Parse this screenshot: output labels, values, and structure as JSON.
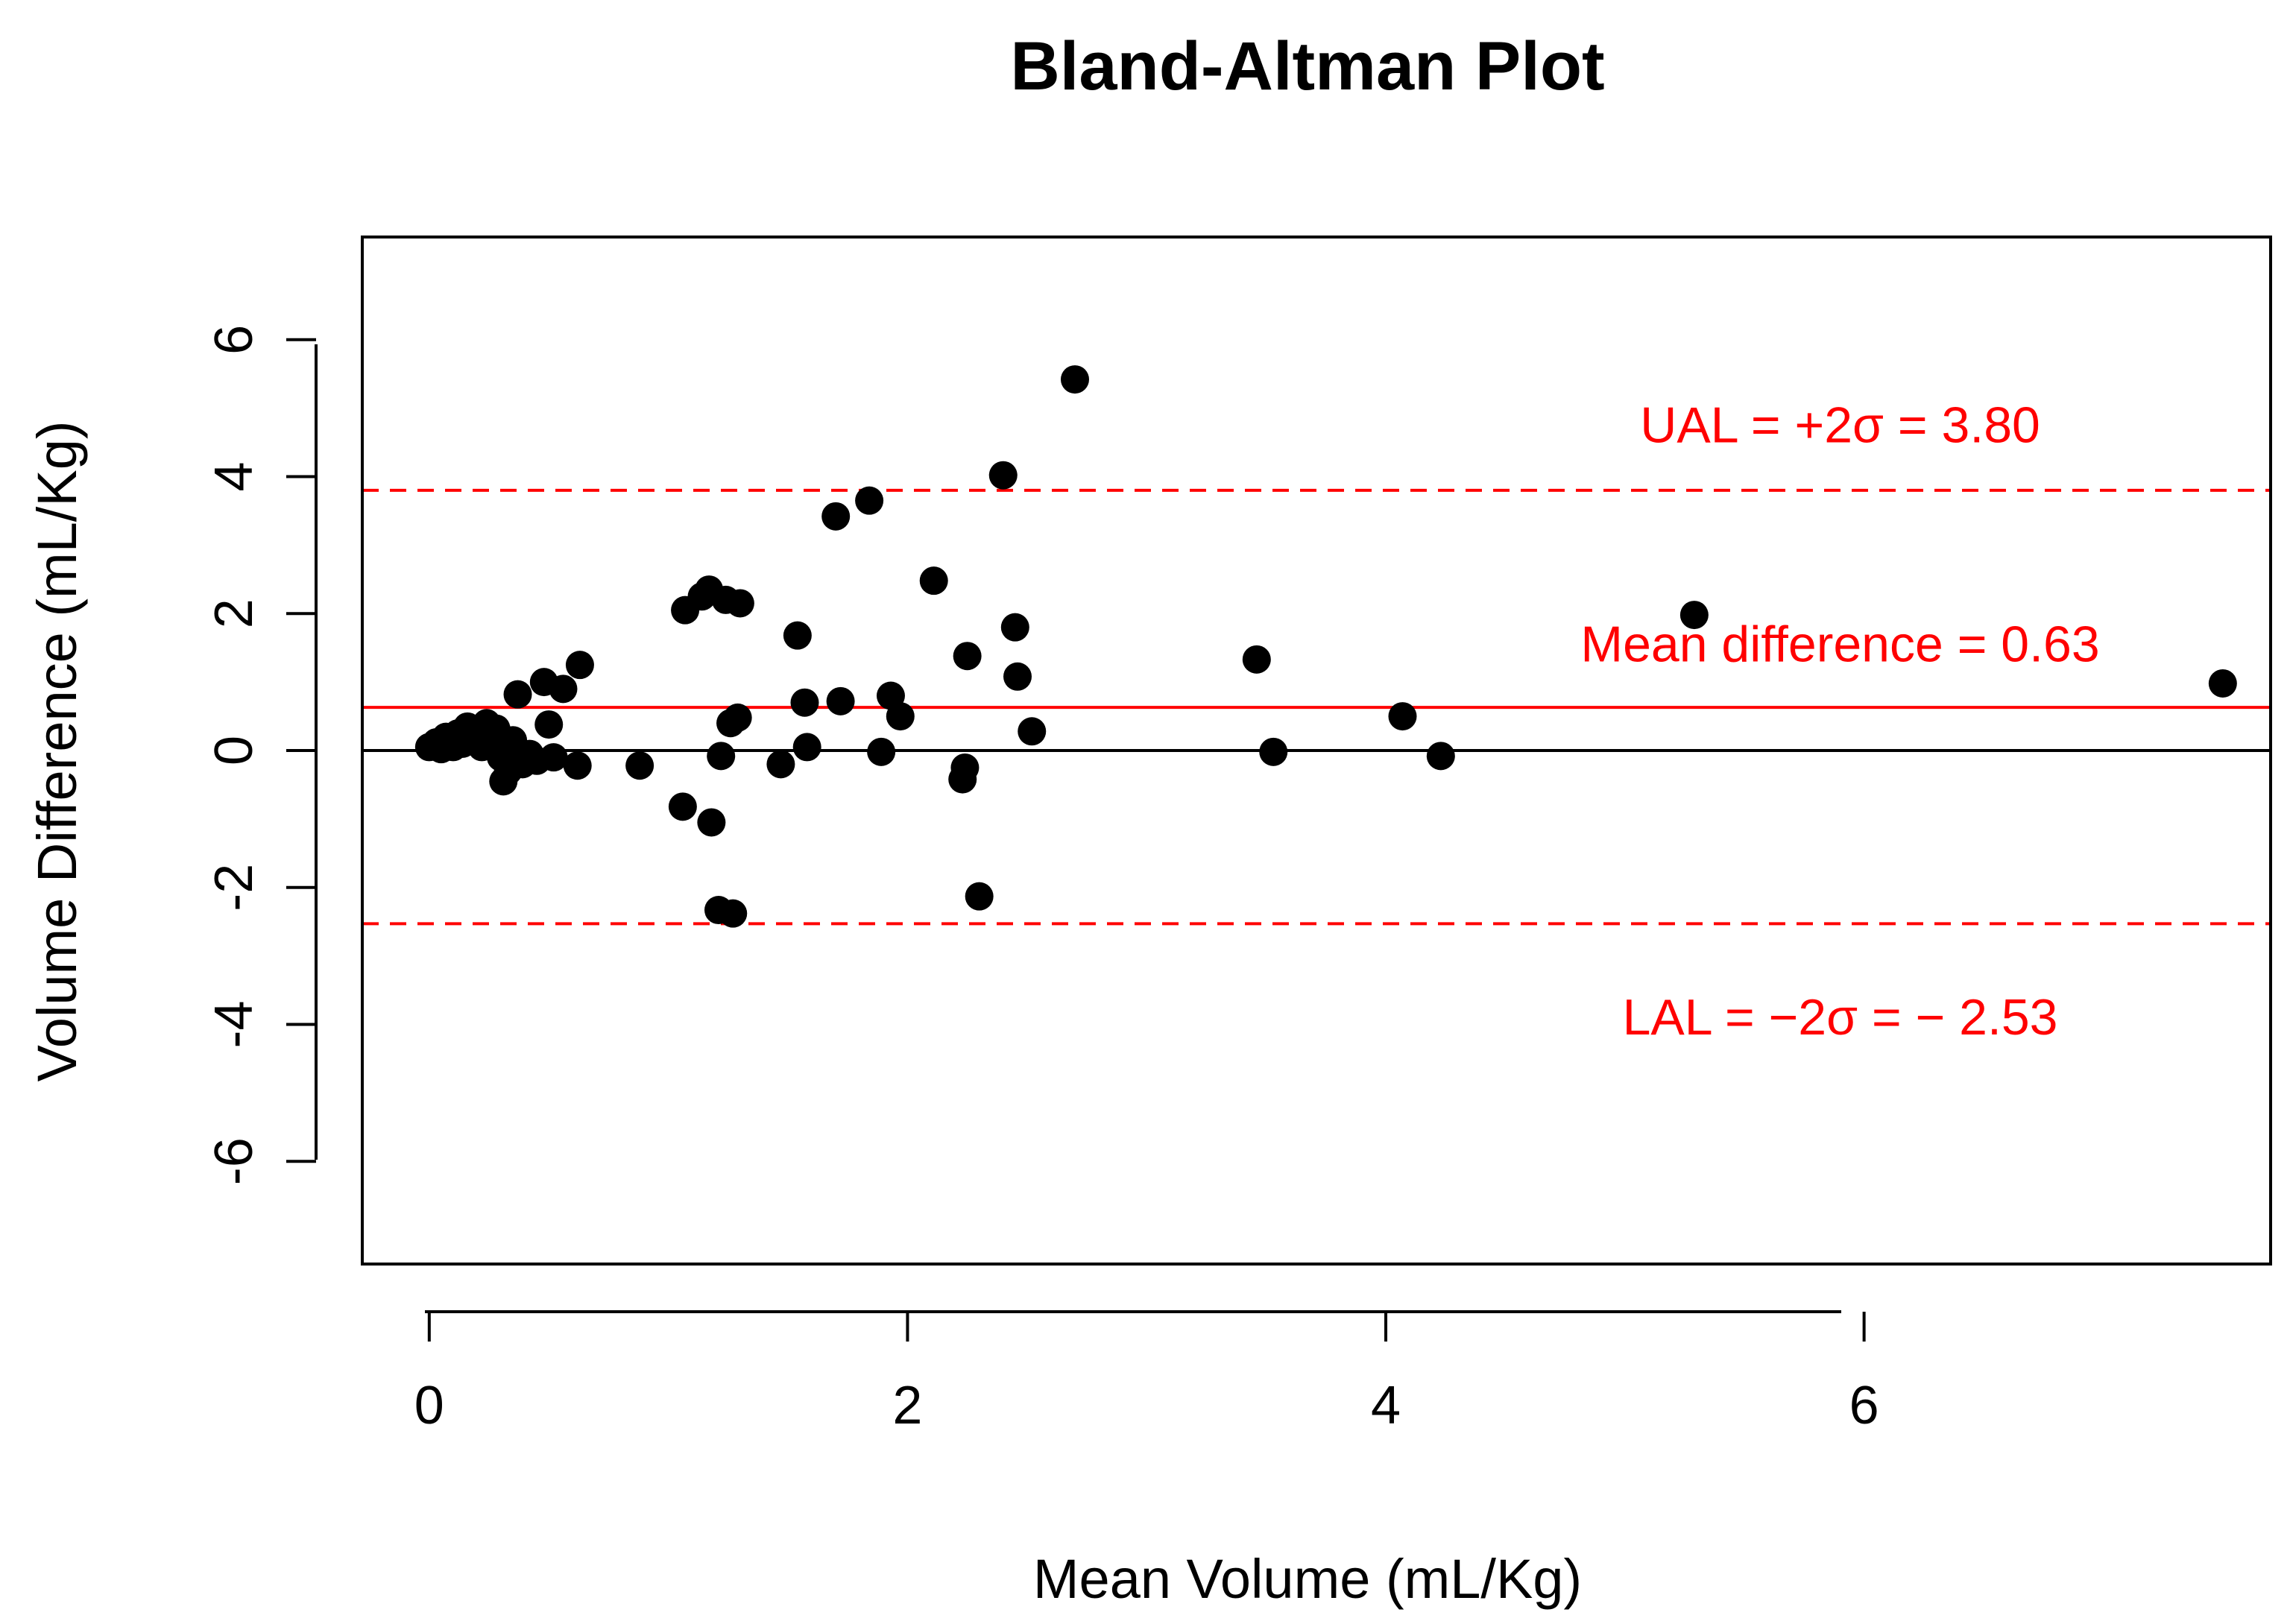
{
  "chart_data": {
    "type": "scatter",
    "title": "Bland-Altman Plot",
    "xlabel": "Mean Volume (mL/Kg)",
    "ylabel": "Volume Difference (mL/Kg)",
    "xlim": [
      -0.28,
      7.7
    ],
    "ylim": [
      -7.5,
      7.5
    ],
    "x_ticks": [
      0,
      2,
      4,
      6
    ],
    "y_ticks": [
      6,
      4,
      2,
      0,
      -2,
      -4,
      -6
    ],
    "grid": false,
    "legend": "none",
    "point_color": "#000000",
    "reference_lines": [
      {
        "name": "zero-line",
        "y": 0,
        "color": "#000000",
        "style": "solid"
      },
      {
        "name": "mean-difference-line",
        "y": 0.63,
        "color": "#ff0000",
        "style": "solid"
      },
      {
        "name": "upper-agreement-limit-line",
        "y": 3.8,
        "color": "#ff0000",
        "style": "dashed"
      },
      {
        "name": "lower-agreement-limit-line",
        "y": -2.53,
        "color": "#ff0000",
        "style": "dashed"
      }
    ],
    "annotations": [
      {
        "name": "ual-annotation",
        "text": "UAL = +2σ = 3.80",
        "x": 5.9,
        "y": 4.5,
        "color": "#ff0000"
      },
      {
        "name": "mean-difference-annotation",
        "text": "Mean difference = 0.63",
        "x": 5.9,
        "y": 1.3,
        "color": "#ff0000"
      },
      {
        "name": "lal-annotation",
        "text": "LAL = −2σ = − 2.53",
        "x": 5.9,
        "y": -4.15,
        "color": "#ff0000"
      }
    ],
    "points": [
      {
        "x": 0.0,
        "y": 0.05
      },
      {
        "x": 0.03,
        "y": 0.12
      },
      {
        "x": 0.05,
        "y": 0.02
      },
      {
        "x": 0.07,
        "y": 0.2
      },
      {
        "x": 0.1,
        "y": 0.05
      },
      {
        "x": 0.12,
        "y": 0.25
      },
      {
        "x": 0.14,
        "y": 0.1
      },
      {
        "x": 0.16,
        "y": 0.35
      },
      {
        "x": 0.18,
        "y": 0.15
      },
      {
        "x": 0.2,
        "y": 0.3
      },
      {
        "x": 0.22,
        "y": 0.05
      },
      {
        "x": 0.24,
        "y": 0.4
      },
      {
        "x": 0.26,
        "y": 0.2
      },
      {
        "x": 0.28,
        "y": 0.32
      },
      {
        "x": 0.3,
        "y": -0.1
      },
      {
        "x": 0.31,
        "y": -0.45
      },
      {
        "x": 0.33,
        "y": -0.3
      },
      {
        "x": 0.35,
        "y": 0.15
      },
      {
        "x": 0.37,
        "y": 0.82
      },
      {
        "x": 0.39,
        "y": -0.2
      },
      {
        "x": 0.42,
        "y": -0.05
      },
      {
        "x": 0.45,
        "y": -0.15
      },
      {
        "x": 0.48,
        "y": 1.0
      },
      {
        "x": 0.5,
        "y": 0.38
      },
      {
        "x": 0.52,
        "y": -0.1
      },
      {
        "x": 0.56,
        "y": 0.9
      },
      {
        "x": 0.62,
        "y": -0.22
      },
      {
        "x": 0.63,
        "y": 1.25
      },
      {
        "x": 0.88,
        "y": -0.22
      },
      {
        "x": 1.06,
        "y": -0.82
      },
      {
        "x": 1.07,
        "y": 2.05
      },
      {
        "x": 1.14,
        "y": 2.25
      },
      {
        "x": 1.17,
        "y": 2.35
      },
      {
        "x": 1.18,
        "y": -1.05
      },
      {
        "x": 1.21,
        "y": -2.33
      },
      {
        "x": 1.22,
        "y": -0.08
      },
      {
        "x": 1.24,
        "y": 2.2
      },
      {
        "x": 1.26,
        "y": 0.4
      },
      {
        "x": 1.27,
        "y": -2.38
      },
      {
        "x": 1.29,
        "y": 0.48
      },
      {
        "x": 1.3,
        "y": 2.15
      },
      {
        "x": 1.47,
        "y": -0.2
      },
      {
        "x": 1.54,
        "y": 1.68
      },
      {
        "x": 1.57,
        "y": 0.7
      },
      {
        "x": 1.58,
        "y": 0.05
      },
      {
        "x": 1.7,
        "y": 3.42
      },
      {
        "x": 1.72,
        "y": 0.72
      },
      {
        "x": 1.84,
        "y": 3.65
      },
      {
        "x": 1.89,
        "y": -0.02
      },
      {
        "x": 1.93,
        "y": 0.8
      },
      {
        "x": 1.97,
        "y": 0.5
      },
      {
        "x": 2.11,
        "y": 2.48
      },
      {
        "x": 2.23,
        "y": -0.42
      },
      {
        "x": 2.24,
        "y": -0.25
      },
      {
        "x": 2.25,
        "y": 1.38
      },
      {
        "x": 2.3,
        "y": -2.13
      },
      {
        "x": 2.4,
        "y": 4.02
      },
      {
        "x": 2.45,
        "y": 1.8
      },
      {
        "x": 2.46,
        "y": 1.08
      },
      {
        "x": 2.52,
        "y": 0.28
      },
      {
        "x": 2.7,
        "y": 5.42
      },
      {
        "x": 3.46,
        "y": 1.33
      },
      {
        "x": 3.53,
        "y": -0.02
      },
      {
        "x": 4.07,
        "y": 0.5
      },
      {
        "x": 4.23,
        "y": -0.08
      },
      {
        "x": 5.29,
        "y": 1.98
      },
      {
        "x": 7.5,
        "y": 0.98
      }
    ]
  }
}
